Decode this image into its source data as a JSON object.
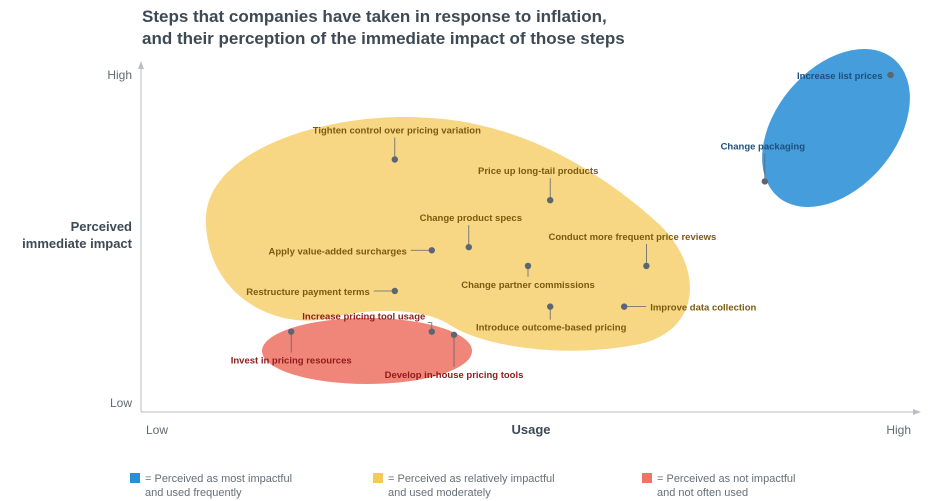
{
  "chart_data": {
    "type": "scatter",
    "title": "Steps that companies have taken in response to inflation,",
    "subtitle": "and their perception of the immediate impact of those steps",
    "xlabel": "Usage",
    "ylabel": [
      "Perceived",
      "immediate impact"
    ],
    "x_ticks": {
      "low": "Low",
      "high": "High"
    },
    "y_ticks": {
      "low": "Low",
      "high": "High"
    },
    "xlim": [
      0,
      100
    ],
    "ylim": [
      0,
      100
    ],
    "grid": false,
    "legend_position": "bottom",
    "legend": [
      {
        "group": "blue",
        "color": "#2b8fd6",
        "line1": "= Perceived as most impactful",
        "line2": "and used frequently"
      },
      {
        "group": "yellow",
        "color": "#f6c95b",
        "line1": "= Perceived as relatively impactful",
        "line2": "and used moderately"
      },
      {
        "group": "red",
        "color": "#ee7566",
        "line1": "= Perceived as not impactful",
        "line2": "and not often used"
      }
    ],
    "points": [
      {
        "label": "Increase list prices",
        "x": 99,
        "y": 100,
        "group": "blue"
      },
      {
        "label": "Change packaging",
        "x": 82,
        "y": 66,
        "group": "blue"
      },
      {
        "label": "Tighten control over pricing variation",
        "x": 32,
        "y": 73,
        "group": "yellow"
      },
      {
        "label": "Price up long-tail products",
        "x": 53,
        "y": 60,
        "group": "yellow"
      },
      {
        "label": "Change product specs",
        "x": 42,
        "y": 45,
        "group": "yellow"
      },
      {
        "label": "Apply value-added surcharges",
        "x": 37,
        "y": 44,
        "group": "yellow"
      },
      {
        "label": "Conduct more frequent price reviews",
        "x": 66,
        "y": 39,
        "group": "yellow"
      },
      {
        "label": "Change partner commissions",
        "x": 50,
        "y": 39,
        "group": "yellow"
      },
      {
        "label": "Restructure payment terms",
        "x": 32,
        "y": 31,
        "group": "yellow"
      },
      {
        "label": "Improve data collection",
        "x": 63,
        "y": 26,
        "group": "yellow"
      },
      {
        "label": "Introduce outcome-based pricing",
        "x": 53,
        "y": 26,
        "group": "yellow"
      },
      {
        "label": "Increase pricing tool usage",
        "x": 37,
        "y": 18,
        "group": "red"
      },
      {
        "label": "Invest in pricing resources",
        "x": 18,
        "y": 18,
        "group": "red"
      },
      {
        "label": "Develop in-house pricing tools",
        "x": 40,
        "y": 17,
        "group": "red"
      }
    ]
  }
}
